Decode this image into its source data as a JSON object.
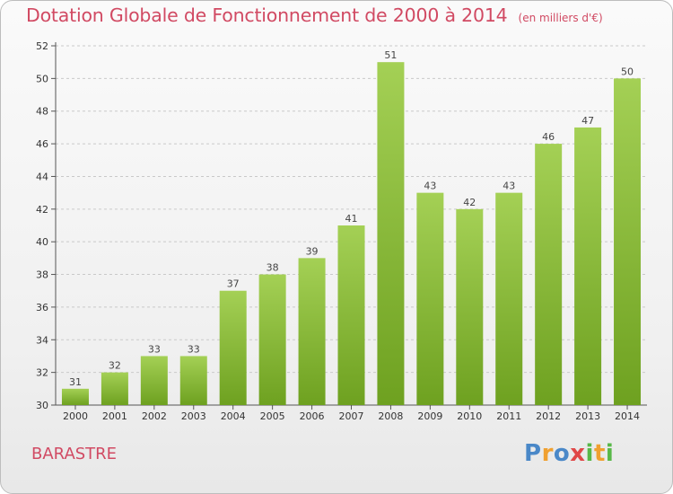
{
  "header": {
    "title": "Dotation Globale de Fonctionnement de 2000 à 2014",
    "subtitle": "(en milliers d'€)"
  },
  "footer": {
    "commune": "BARASTRE",
    "logo": "Proxiti"
  },
  "colors": {
    "title": "#d14a63",
    "bar_light": "#a4d055",
    "bar_dark": "#6ea120",
    "grid": "#c9c9c9"
  },
  "chart_data": {
    "type": "bar",
    "title": "Dotation Globale de Fonctionnement de 2000 à 2014",
    "subtitle": "(en milliers d'€)",
    "xlabel": "",
    "ylabel": "",
    "categories": [
      "2000",
      "2001",
      "2002",
      "2003",
      "2004",
      "2005",
      "2006",
      "2007",
      "2008",
      "2009",
      "2010",
      "2011",
      "2012",
      "2013",
      "2014"
    ],
    "values": [
      31,
      32,
      33,
      33,
      37,
      38,
      39,
      41,
      51,
      43,
      42,
      43,
      46,
      47,
      50
    ],
    "ylim": [
      30,
      52
    ],
    "yticks": [
      30,
      32,
      34,
      36,
      38,
      40,
      42,
      44,
      46,
      48,
      50,
      52
    ],
    "grid": true,
    "data_labels": true
  }
}
